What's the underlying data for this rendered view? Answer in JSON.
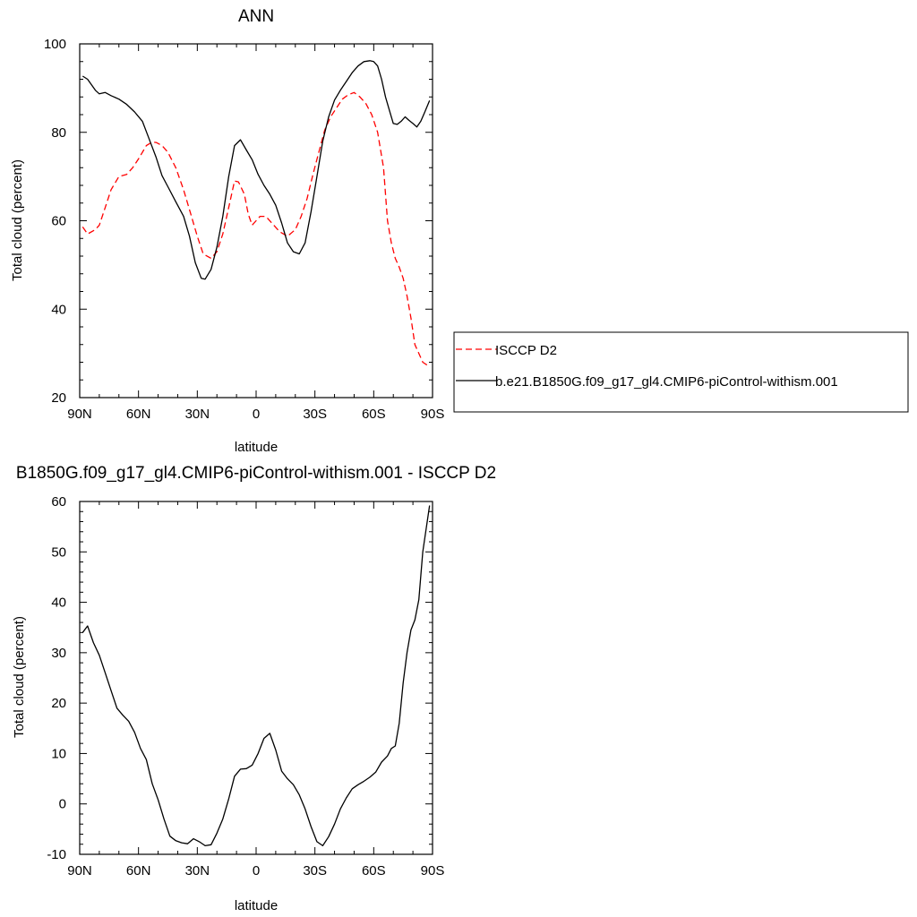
{
  "chart_data": [
    {
      "type": "line",
      "title": "ANN",
      "xlabel": "latitude",
      "ylabel": "Total cloud (percent)",
      "xlim": [
        90,
        -90
      ],
      "ylim": [
        20,
        100
      ],
      "xticks": [
        90,
        60,
        30,
        0,
        -30,
        -60,
        -90
      ],
      "xtick_labels": [
        "90N",
        "60N",
        "30N",
        "0",
        "30S",
        "60S",
        "90S"
      ],
      "yticks": [
        20,
        40,
        60,
        80,
        100
      ],
      "ytick_labels": [
        "20",
        "40",
        "60",
        "80",
        "100"
      ],
      "legend_position": "right",
      "series": [
        {
          "name": "ISCCP D2",
          "color": "#ff0000",
          "dash": "dashed",
          "x": [
            88.5,
            86,
            82,
            80,
            77,
            74,
            70,
            66,
            63,
            60,
            56,
            53,
            51,
            48,
            45,
            41,
            37,
            33,
            30,
            27,
            23,
            20,
            17,
            14,
            11,
            9,
            6,
            4,
            2,
            0,
            -2,
            -5,
            -8,
            -12,
            -16,
            -20,
            -23,
            -26,
            -29,
            -32,
            -35,
            -38,
            -41,
            -44,
            -47,
            -50,
            -53,
            -56,
            -59,
            -62,
            -65,
            -67,
            -69,
            -71,
            -73,
            -75,
            -77,
            -79,
            -81,
            -83,
            -85,
            -88.5
          ],
          "y": [
            58.6,
            57,
            58,
            59,
            63,
            67,
            70,
            70.5,
            72,
            74,
            77,
            77.8,
            77.7,
            77,
            75.5,
            72,
            67,
            61,
            56.5,
            52.5,
            51.5,
            53,
            57,
            63,
            69,
            68.8,
            66,
            61.5,
            59,
            60,
            61,
            61,
            59.5,
            57.5,
            56.5,
            58,
            61,
            65,
            70.5,
            75.5,
            80.5,
            83.5,
            85.5,
            87.5,
            88.5,
            89,
            88,
            86.5,
            84,
            80,
            72,
            60,
            55,
            51.5,
            49.5,
            47,
            43,
            38,
            32,
            30,
            28,
            27
          ]
        },
        {
          "name": "b.e21.B1850G.f09_g17_gl4.CMIP6-piControl-withism.001",
          "color": "#000000",
          "dash": "solid",
          "x": [
            88.5,
            86,
            82,
            80,
            77,
            74,
            70,
            66,
            62,
            58,
            55,
            51,
            48,
            45,
            41,
            37,
            34,
            31,
            28,
            26,
            23,
            20,
            17,
            14,
            11,
            8,
            5,
            2,
            -1,
            -4,
            -7,
            -10,
            -13,
            -16,
            -19,
            -22,
            -25,
            -28,
            -31,
            -34,
            -37,
            -40,
            -43,
            -46,
            -49,
            -52,
            -55,
            -58,
            -60,
            -62,
            -64,
            -66,
            -68,
            -70,
            -72,
            -74,
            -76,
            -78,
            -80,
            -82,
            -84,
            -86,
            -88.5
          ],
          "y": [
            92.7,
            92,
            89.5,
            88.7,
            89,
            88.3,
            87.5,
            86.3,
            84.6,
            82.5,
            79,
            74.3,
            70.2,
            67.7,
            64.3,
            61,
            56.5,
            50.5,
            47,
            46.8,
            49,
            54,
            61,
            70,
            77,
            78.3,
            76,
            73.8,
            70.5,
            68,
            66,
            63.5,
            59.5,
            55,
            53,
            52.5,
            55,
            62,
            70,
            78,
            83.5,
            87.3,
            89.5,
            91.5,
            93.5,
            95,
            96,
            96.2,
            96,
            95,
            92,
            88,
            85,
            82,
            81.8,
            82.5,
            83.5,
            82.7,
            82,
            81.2,
            82.5,
            84.5,
            87.2
          ]
        }
      ]
    },
    {
      "type": "line",
      "title": "B1850G.f09_g17_gl4.CMIP6-piControl-withism.001 - ISCCP D2",
      "xlabel": "latitude",
      "ylabel": "Total cloud (percent)",
      "xlim": [
        90,
        -90
      ],
      "ylim": [
        -10,
        60
      ],
      "xticks": [
        90,
        60,
        30,
        0,
        -30,
        -60,
        -90
      ],
      "xtick_labels": [
        "90N",
        "60N",
        "30N",
        "0",
        "30S",
        "60S",
        "90S"
      ],
      "yticks": [
        -10,
        0,
        10,
        20,
        30,
        40,
        50,
        60
      ],
      "ytick_labels": [
        "-10",
        "0",
        "10",
        "20",
        "30",
        "40",
        "50",
        "60"
      ],
      "series": [
        {
          "color": "#000000",
          "dash": "solid",
          "x": [
            88.5,
            86,
            83,
            80,
            77,
            74,
            71,
            68,
            65,
            62,
            59,
            56,
            53,
            50,
            47,
            44,
            41,
            38,
            35,
            32,
            29,
            26,
            23,
            20,
            17,
            14,
            11,
            8,
            5,
            2,
            -1,
            -4,
            -7,
            -10,
            -13,
            -16,
            -19,
            -22,
            -25,
            -28,
            -31,
            -34,
            -37,
            -40,
            -43,
            -46,
            -49,
            -52,
            -55,
            -58,
            -61,
            -64,
            -67,
            -69,
            -71,
            -73,
            -75,
            -77,
            -79,
            -81,
            -83,
            -85,
            -88.5
          ],
          "y": [
            34,
            35.3,
            32,
            29.5,
            26,
            22.5,
            19,
            17.6,
            16.4,
            14.2,
            11,
            8.8,
            4,
            0.8,
            -3,
            -6.4,
            -7.3,
            -7.7,
            -7.9,
            -6.9,
            -7.5,
            -8.3,
            -8.1,
            -5.8,
            -3,
            1,
            5.5,
            6.9,
            7,
            7.7,
            10,
            13,
            14,
            10.7,
            6.5,
            5,
            3.8,
            1.8,
            -1,
            -4.5,
            -7.5,
            -8.3,
            -6.5,
            -4,
            -1,
            1.2,
            3,
            3.8,
            4.5,
            5.3,
            6.3,
            8.3,
            9.5,
            11,
            11.5,
            16,
            24,
            30,
            34.5,
            36.5,
            40.5,
            50,
            59.2
          ]
        }
      ]
    }
  ]
}
